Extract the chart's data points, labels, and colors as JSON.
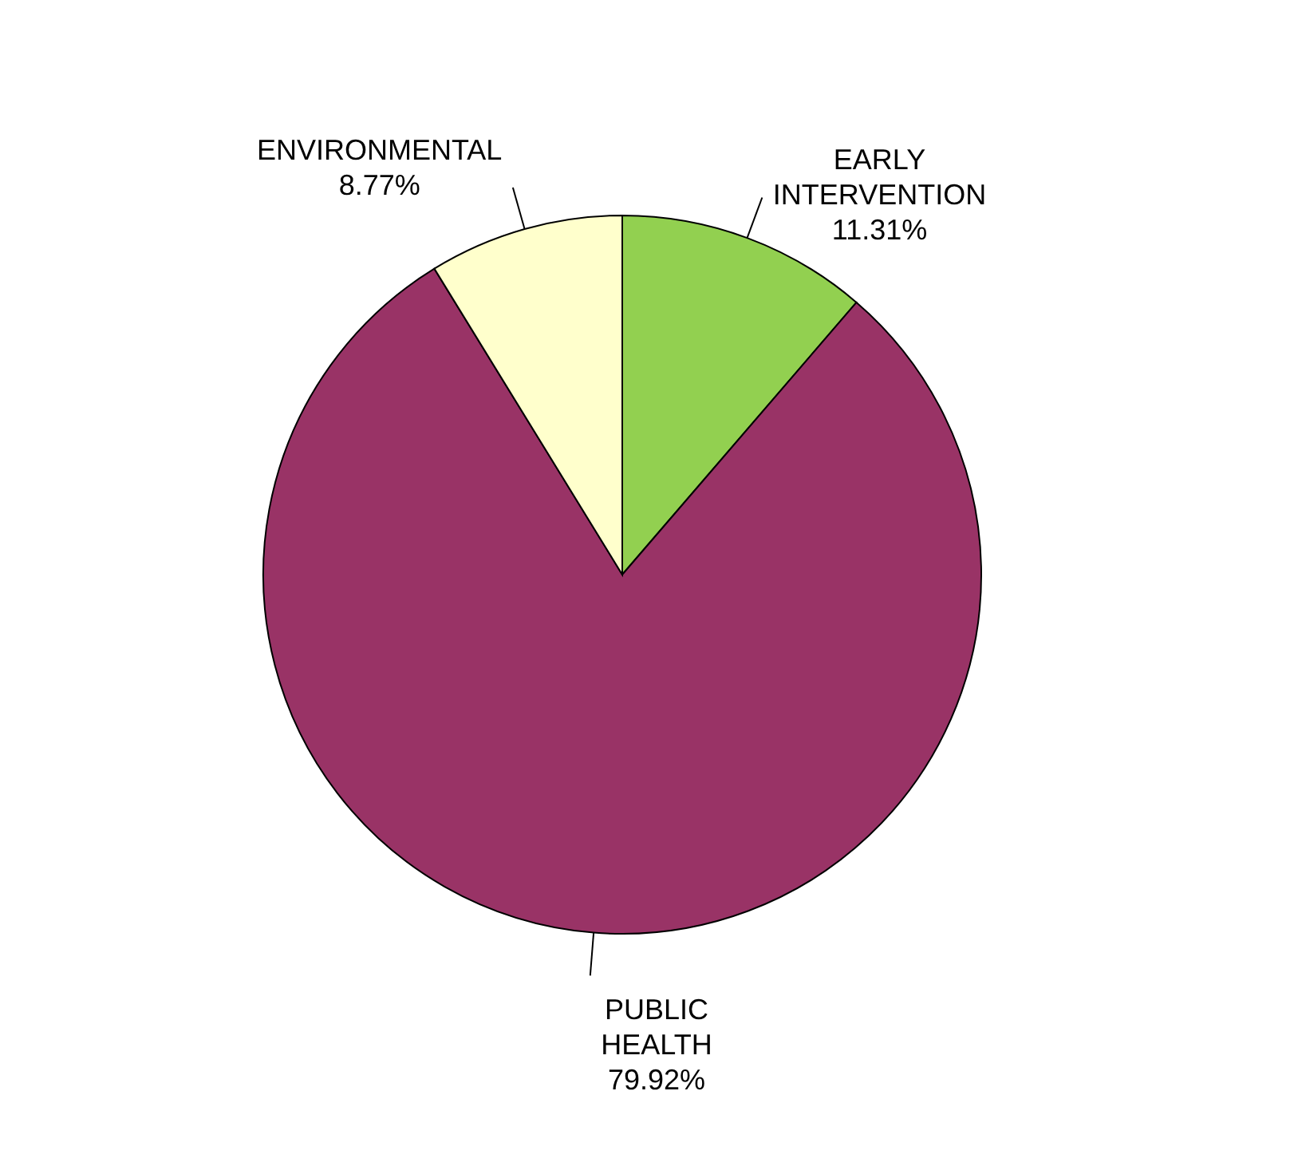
{
  "chart_data": {
    "type": "pie",
    "categories": [
      "EARLY INTERVENTION",
      "PUBLIC HEALTH",
      "ENVIRONMENTAL"
    ],
    "values": [
      11.31,
      79.92,
      8.77
    ],
    "colors": [
      "#92d050",
      "#993366",
      "#ffffcc"
    ],
    "value_labels": [
      "11.31%",
      "79.92%",
      "8.77%"
    ]
  }
}
